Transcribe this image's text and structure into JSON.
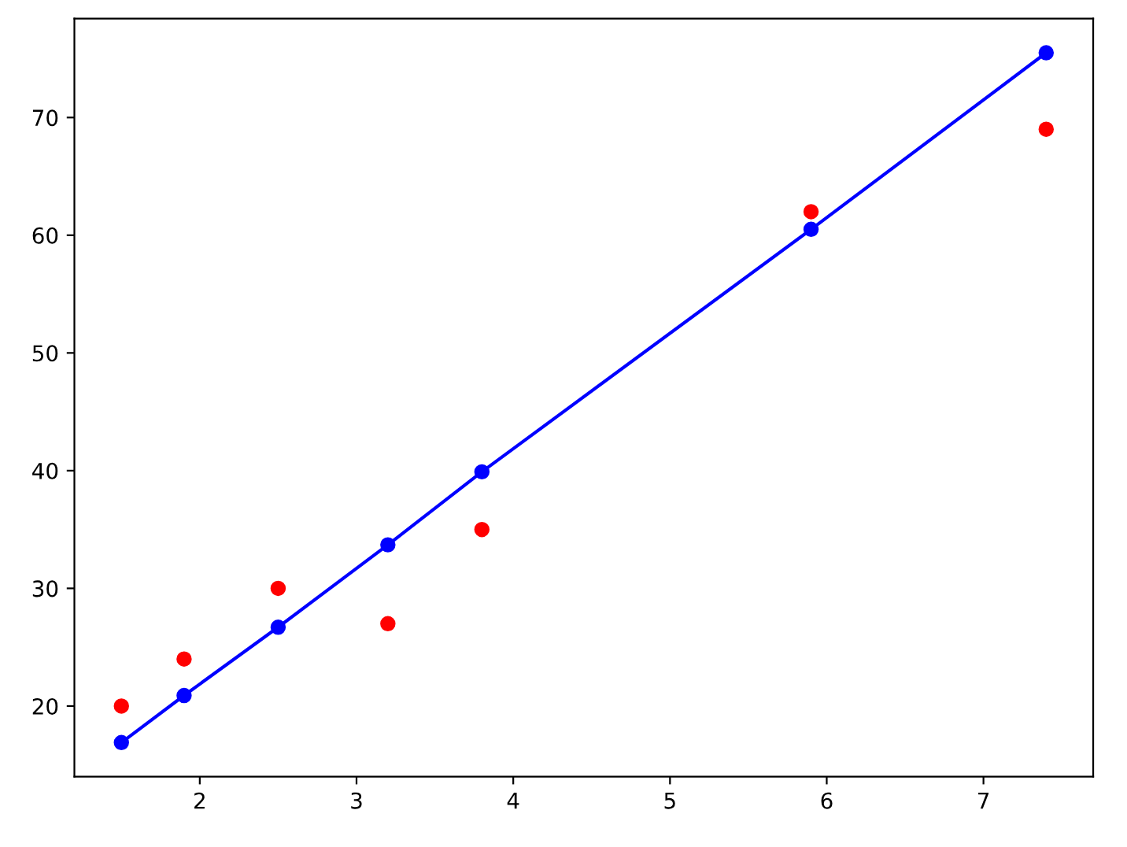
{
  "chart_data": {
    "type": "scatter",
    "x": [
      1.5,
      1.9,
      2.5,
      3.2,
      3.8,
      5.9,
      7.4
    ],
    "series": [
      {
        "color": "#ff0000",
        "marker": "circle",
        "values": [
          20,
          24,
          30,
          27,
          35,
          62,
          69
        ]
      },
      {
        "type": "line",
        "color": "#0000ff",
        "marker": "circle",
        "line_style": "solid",
        "values": [
          16.9,
          20.9,
          26.7,
          33.7,
          39.9,
          60.5,
          75.5
        ]
      }
    ],
    "xlim": [
      1.2,
      7.7
    ],
    "xticks": [
      2,
      3,
      4,
      5,
      6,
      7
    ],
    "ylim": [
      14,
      78.4
    ],
    "yticks": [
      20,
      30,
      40,
      50,
      60,
      70
    ],
    "grid": false,
    "legend": false
  }
}
